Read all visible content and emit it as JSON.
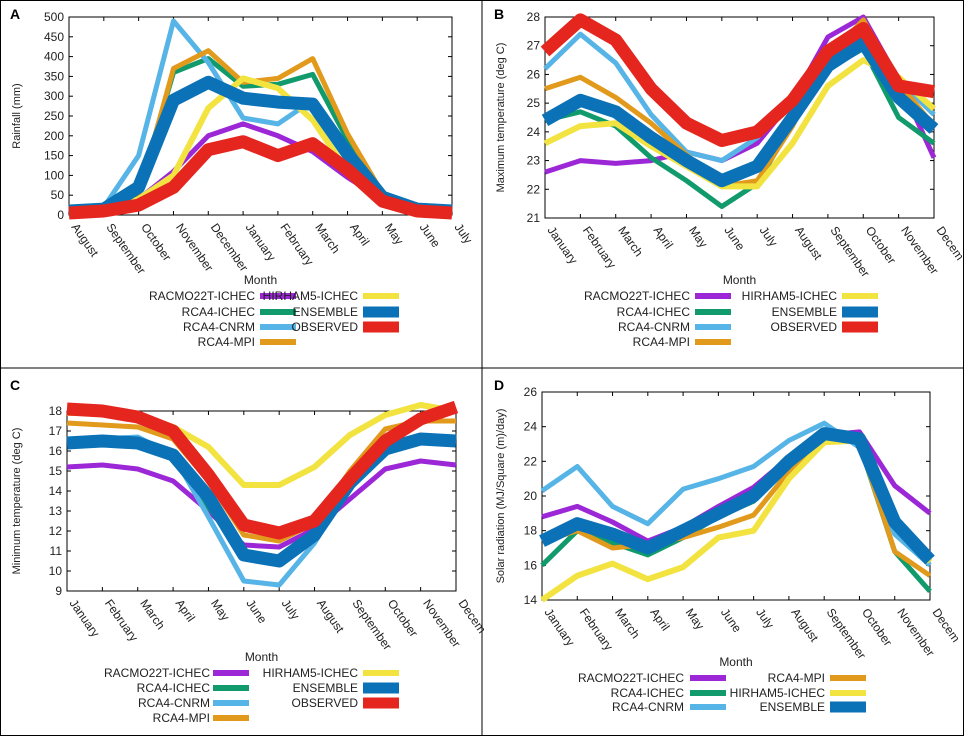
{
  "colors": {
    "RACMO22T-ICHEC": "#9b27d6",
    "RCA4-ICHEC": "#119a6b",
    "RCA4-CNRM": "#57b4e6",
    "RCA4-MPI": "#e19a1b",
    "HIRHAM5-ICHEC": "#f2e341",
    "ENSEMBLE": "#0b72b7",
    "OBSERVED": "#e5261f"
  },
  "chart_data": [
    {
      "panel": "A",
      "type": "line",
      "ylabel": "Rainfall (mm)",
      "xlabel": "Month",
      "ylim": [
        0,
        500
      ],
      "yticks": [
        0,
        50,
        100,
        150,
        200,
        250,
        300,
        350,
        400,
        450,
        500
      ],
      "categories": [
        "August",
        "September",
        "October",
        "November",
        "December",
        "January",
        "February",
        "March",
        "April",
        "May",
        "June",
        "July"
      ],
      "series": [
        {
          "name": "RACMO22T-ICHEC",
          "values": [
            5,
            10,
            40,
            110,
            200,
            230,
            200,
            160,
            95,
            40,
            12,
            5
          ]
        },
        {
          "name": "RCA4-ICHEC",
          "values": [
            10,
            15,
            60,
            360,
            395,
            325,
            330,
            355,
            190,
            50,
            18,
            10
          ]
        },
        {
          "name": "RCA4-CNRM",
          "values": [
            10,
            20,
            150,
            490,
            385,
            245,
            230,
            290,
            160,
            50,
            15,
            10
          ]
        },
        {
          "name": "RCA4-MPI",
          "values": [
            10,
            15,
            50,
            370,
            415,
            335,
            345,
            395,
            205,
            55,
            18,
            10
          ]
        },
        {
          "name": "HIRHAM5-ICHEC",
          "values": [
            5,
            10,
            40,
            100,
            270,
            345,
            320,
            240,
            110,
            40,
            12,
            5
          ]
        },
        {
          "name": "ENSEMBLE",
          "values": [
            10,
            15,
            70,
            290,
            335,
            295,
            285,
            280,
            155,
            45,
            15,
            10
          ]
        },
        {
          "name": "OBSERVED",
          "values": [
            5,
            10,
            25,
            70,
            165,
            185,
            150,
            180,
            115,
            35,
            10,
            5
          ]
        }
      ],
      "legend": [
        "RACMO22T-ICHEC",
        "RCA4-ICHEC",
        "RCA4-CNRM",
        "RCA4-MPI",
        "HIRHAM5-ICHEC",
        "ENSEMBLE",
        "OBSERVED"
      ]
    },
    {
      "panel": "B",
      "type": "line",
      "ylabel": "Maximum temperature (deg C)",
      "xlabel": "Month",
      "ylim": [
        21,
        28
      ],
      "yticks": [
        21,
        22,
        23,
        24,
        25,
        26,
        27,
        28
      ],
      "categories": [
        "January",
        "February",
        "March",
        "April",
        "May",
        "June",
        "July",
        "August",
        "September",
        "October",
        "November",
        "Decem"
      ],
      "series": [
        {
          "name": "RACMO22T-ICHEC",
          "values": [
            22.6,
            23.0,
            22.9,
            23.0,
            23.3,
            23.0,
            23.6,
            25.1,
            27.3,
            28.0,
            25.8,
            23.1
          ]
        },
        {
          "name": "RCA4-ICHEC",
          "values": [
            24.4,
            24.7,
            24.2,
            23.1,
            22.3,
            21.4,
            22.2,
            24.3,
            26.2,
            26.9,
            24.5,
            23.6
          ]
        },
        {
          "name": "RCA4-CNRM",
          "values": [
            26.2,
            27.4,
            26.4,
            24.6,
            23.3,
            23.0,
            23.8,
            25.1,
            26.8,
            27.4,
            25.8,
            24.6
          ]
        },
        {
          "name": "RCA4-MPI",
          "values": [
            25.5,
            25.9,
            25.2,
            24.3,
            23.2,
            22.1,
            22.3,
            24.2,
            26.6,
            27.9,
            25.7,
            24.2
          ]
        },
        {
          "name": "HIRHAM5-ICHEC",
          "values": [
            23.6,
            24.2,
            24.3,
            23.5,
            22.8,
            22.1,
            22.1,
            23.6,
            25.6,
            26.5,
            25.9,
            24.8
          ]
        },
        {
          "name": "ENSEMBLE",
          "values": [
            24.4,
            25.1,
            24.7,
            23.8,
            23.0,
            22.3,
            22.8,
            24.5,
            26.3,
            27.1,
            25.2,
            24.1
          ]
        },
        {
          "name": "OBSERVED",
          "values": [
            26.8,
            27.9,
            27.2,
            25.5,
            24.3,
            23.7,
            24.0,
            25.1,
            26.8,
            27.6,
            25.6,
            25.4
          ]
        }
      ],
      "legend": [
        "RACMO22T-ICHEC",
        "RCA4-ICHEC",
        "RCA4-CNRM",
        "RCA4-MPI",
        "HIRHAM5-ICHEC",
        "ENSEMBLE",
        "OBSERVED"
      ]
    },
    {
      "panel": "C",
      "type": "line",
      "ylabel": "Minimum temperature (deg C)",
      "xlabel": "Month",
      "ylim": [
        9,
        18
      ],
      "yticks": [
        9,
        10,
        11,
        12,
        13,
        14,
        15,
        16,
        17,
        18
      ],
      "categories": [
        "January",
        "February",
        "March",
        "April",
        "May",
        "June",
        "July",
        "August",
        "September",
        "October",
        "November",
        "Decem"
      ],
      "series": [
        {
          "name": "RACMO22T-ICHEC",
          "values": [
            15.2,
            15.3,
            15.1,
            14.5,
            13.0,
            11.3,
            11.2,
            12.1,
            13.6,
            15.1,
            15.5,
            15.3
          ]
        },
        {
          "name": "RCA4-ICHEC",
          "values": [
            16.4,
            16.5,
            16.4,
            15.9,
            13.2,
            10.9,
            10.7,
            11.9,
            14.6,
            16.3,
            16.7,
            16.6
          ]
        },
        {
          "name": "RCA4-CNRM",
          "values": [
            16.6,
            16.6,
            16.7,
            15.8,
            12.7,
            9.5,
            9.3,
            11.4,
            14.3,
            16.0,
            16.6,
            16.5
          ]
        },
        {
          "name": "RCA4-MPI",
          "values": [
            17.4,
            17.3,
            17.2,
            16.6,
            14.5,
            11.8,
            11.5,
            12.4,
            15.0,
            17.1,
            17.5,
            17.5
          ]
        },
        {
          "name": "HIRHAM5-ICHEC",
          "values": [
            17.9,
            17.9,
            17.8,
            17.2,
            16.2,
            14.3,
            14.3,
            15.2,
            16.8,
            17.8,
            18.3,
            18.0
          ]
        },
        {
          "name": "ENSEMBLE",
          "values": [
            16.4,
            16.5,
            16.4,
            15.8,
            13.7,
            10.8,
            10.5,
            11.8,
            14.4,
            16.1,
            16.6,
            16.5
          ]
        },
        {
          "name": "OBSERVED",
          "values": [
            18.1,
            18.0,
            17.7,
            17.0,
            14.8,
            12.3,
            11.9,
            12.5,
            14.6,
            16.5,
            17.6,
            18.2
          ]
        }
      ],
      "legend": [
        "RACMO22T-ICHEC",
        "RCA4-ICHEC",
        "RCA4-CNRM",
        "RCA4-MPI",
        "HIRHAM5-ICHEC",
        "ENSEMBLE",
        "OBSERVED"
      ]
    },
    {
      "panel": "D",
      "type": "line",
      "ylabel": "Solar radiation (MJ/Square (m)/day)",
      "xlabel": "Month",
      "ylim": [
        14,
        26
      ],
      "yticks": [
        14,
        16,
        18,
        20,
        22,
        24,
        26
      ],
      "categories": [
        "January",
        "February",
        "March",
        "April",
        "May",
        "June",
        "July",
        "August",
        "September",
        "October",
        "November",
        "Decem"
      ],
      "series": [
        {
          "name": "RACMO22T-ICHEC",
          "values": [
            18.8,
            19.4,
            18.5,
            17.4,
            18.2,
            19.4,
            20.5,
            22.2,
            23.5,
            23.7,
            20.6,
            19.0
          ]
        },
        {
          "name": "RCA4-ICHEC",
          "values": [
            16.0,
            18.0,
            17.3,
            16.6,
            17.6,
            18.8,
            19.7,
            21.8,
            23.6,
            23.0,
            16.8,
            14.5
          ]
        },
        {
          "name": "RCA4-CNRM",
          "values": [
            20.3,
            21.7,
            19.4,
            18.4,
            20.4,
            21.0,
            21.7,
            23.2,
            24.2,
            22.8,
            17.8,
            16.0
          ]
        },
        {
          "name": "RCA4-MPI",
          "values": [
            17.4,
            18.0,
            17.0,
            17.2,
            17.6,
            18.2,
            18.9,
            21.4,
            23.5,
            23.1,
            16.8,
            15.4
          ]
        },
        {
          "name": "HIRHAM5-ICHEC",
          "values": [
            14.0,
            15.4,
            16.1,
            15.2,
            15.9,
            17.6,
            18.0,
            21.0,
            23.1,
            23.2,
            18.7,
            16.2
          ]
        },
        {
          "name": "ENSEMBLE",
          "values": [
            17.4,
            18.4,
            17.8,
            17.0,
            18.0,
            19.0,
            20.0,
            22.0,
            23.6,
            23.3,
            18.5,
            16.3
          ]
        }
      ],
      "legend": [
        "RACMO22T-ICHEC",
        "RCA4-ICHEC",
        "RCA4-CNRM",
        "RCA4-MPI",
        "HIRHAM5-ICHEC",
        "ENSEMBLE"
      ]
    }
  ]
}
